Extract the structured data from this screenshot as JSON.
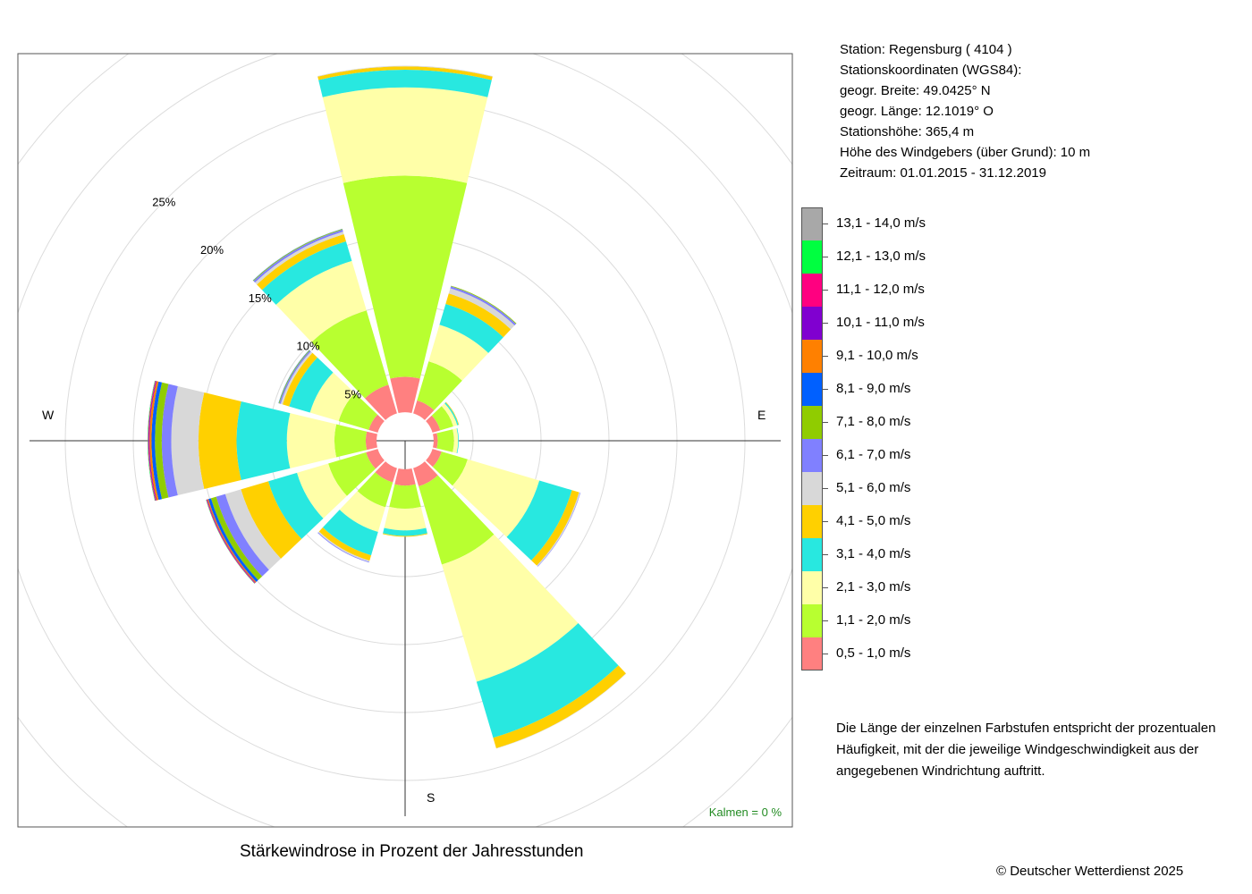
{
  "station": {
    "line1": "Station:  Regensburg  ( 4104 )",
    "line2": "Stationskoordinaten (WGS84):",
    "line3": "geogr. Breite: 49.0425° N",
    "line4": "geogr. Länge: 12.1019° O",
    "line5": "Stationshöhe: 365,4 m",
    "line6": "Höhe des Windgebers (über Grund): 10 m",
    "line7": "Zeitraum: 01.01.2015 - 31.12.2019"
  },
  "legend": [
    {
      "label": "13,1 - 14,0 m/s",
      "color": "#a8a8a8"
    },
    {
      "label": "12,1 - 13,0 m/s",
      "color": "#00ff40"
    },
    {
      "label": "11,1 - 12,0 m/s",
      "color": "#ff0080"
    },
    {
      "label": "10,1 - 11,0 m/s",
      "color": "#8000d0"
    },
    {
      "label": "9,1 - 10,0 m/s",
      "color": "#ff8000"
    },
    {
      "label": "8,1 - 9,0 m/s",
      "color": "#0060ff"
    },
    {
      "label": "7,1 - 8,0 m/s",
      "color": "#90cc00"
    },
    {
      "label": "6,1 - 7,0 m/s",
      "color": "#8080ff"
    },
    {
      "label": "5,1 - 6,0 m/s",
      "color": "#d8d8d8"
    },
    {
      "label": "4,1 - 5,0 m/s",
      "color": "#ffd000"
    },
    {
      "label": "3,1 - 4,0 m/s",
      "color": "#28e8e0"
    },
    {
      "label": "2,1 - 3,0 m/s",
      "color": "#ffffa8"
    },
    {
      "label": "1,1 - 2,0 m/s",
      "color": "#b8ff30"
    },
    {
      "label": "0,5 - 1,0 m/s",
      "color": "#ff8080"
    }
  ],
  "note": {
    "line1": "Die Länge der einzelnen Farbstufen entspricht der prozentualen",
    "line2": "Häufigkeit, mit der die jeweilige Windgeschwindigkeit aus der",
    "line3": "angegebenen Windrichtung auftritt."
  },
  "kalmen": "Kalmen  =  0 %",
  "title": "Stärkewindrose in Prozent der Jahresstunden",
  "copyright": "© Deutscher Wetterdienst  2025",
  "compass": {
    "west": "W",
    "east": "E",
    "south": "S"
  },
  "chart_data": {
    "type": "wind-rose",
    "title": "Stärkewindrose in Prozent der Jahresstunden",
    "radial_unit": "%",
    "radial_ticks": [
      5,
      10,
      15,
      20,
      25
    ],
    "radial_tick_labels": [
      "5%",
      "10%",
      "15%",
      "20%",
      "25%"
    ],
    "radial_max": 25,
    "inner_radius_percent": 2.1,
    "calms_percent": 0,
    "speed_classes": [
      "0,5 - 1,0 m/s",
      "1,1 - 2,0 m/s",
      "2,1 - 3,0 m/s",
      "3,1 - 4,0 m/s",
      "4,1 - 5,0 m/s",
      "5,1 - 6,0 m/s",
      "6,1 - 7,0 m/s",
      "7,1 - 8,0 m/s",
      "8,1 - 9,0 m/s",
      "9,1 - 10,0 m/s",
      "10,1 - 11,0 m/s",
      "11,1 - 12,0 m/s",
      "12,1 - 13,0 m/s",
      "13,1 - 14,0 m/s"
    ],
    "directions_deg": [
      0,
      30,
      60,
      90,
      120,
      150,
      180,
      210,
      240,
      270,
      300,
      330
    ],
    "sector_width_deg": 27,
    "frequencies": [
      [
        2.6,
        14.8,
        6.5,
        1.3,
        0.25,
        0.05,
        0,
        0,
        0,
        0,
        0,
        0,
        0,
        0
      ],
      [
        1.0,
        3.0,
        2.8,
        1.6,
        0.8,
        0.4,
        0.15,
        0.05,
        0,
        0,
        0,
        0,
        0,
        0
      ],
      [
        0.6,
        1.0,
        0.3,
        0.1,
        0.04,
        0,
        0,
        0,
        0,
        0,
        0,
        0,
        0,
        0
      ],
      [
        0.3,
        1.2,
        0.3,
        0.05,
        0,
        0,
        0,
        0,
        0,
        0,
        0,
        0,
        0,
        0
      ],
      [
        0.7,
        2.0,
        5.5,
        2.5,
        0.55,
        0.08,
        0.03,
        0,
        0,
        0,
        0,
        0,
        0,
        0
      ],
      [
        1.4,
        6.0,
        9.0,
        4.3,
        0.8,
        0.03,
        0,
        0,
        0,
        0,
        0,
        0,
        0,
        0
      ],
      [
        1.2,
        1.7,
        1.6,
        0.4,
        0.06,
        0,
        0,
        0,
        0,
        0,
        0,
        0,
        0,
        0
      ],
      [
        1.1,
        1.9,
        1.9,
        1.8,
        0.4,
        0.1,
        0.05,
        0,
        0,
        0,
        0,
        0,
        0,
        0
      ],
      [
        0.9,
        2.9,
        2.4,
        2.2,
        2.1,
        1.2,
        0.7,
        0.4,
        0.2,
        0.08,
        0.04,
        0.04,
        0.02,
        0
      ],
      [
        0.8,
        2.3,
        3.5,
        3.7,
        2.8,
        2.0,
        0.7,
        0.5,
        0.25,
        0.15,
        0.05,
        0.05,
        0.03,
        0.02
      ],
      [
        0.7,
        2.3,
        2.2,
        1.6,
        0.5,
        0.15,
        0.1,
        0.05,
        0.02,
        0,
        0,
        0,
        0,
        0
      ],
      [
        2.2,
        5.7,
        3.8,
        1.5,
        0.55,
        0.2,
        0.15,
        0.05,
        0.02,
        0,
        0,
        0,
        0,
        0
      ]
    ],
    "colors": [
      "#ff8080",
      "#b8ff30",
      "#ffffa8",
      "#28e8e0",
      "#ffd000",
      "#d8d8d8",
      "#8080ff",
      "#90cc00",
      "#0060ff",
      "#ff8000",
      "#8000d0",
      "#ff0080",
      "#00ff40",
      "#a8a8a8"
    ]
  }
}
